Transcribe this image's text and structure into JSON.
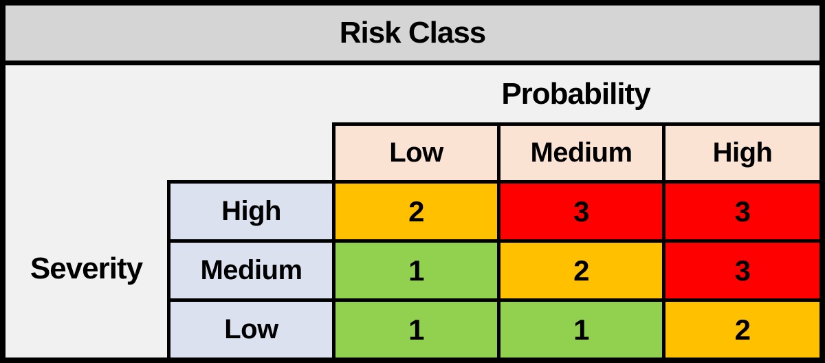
{
  "title": "Risk Class",
  "axes": {
    "column": "Probability",
    "row": "Severity"
  },
  "columns": [
    "Low",
    "Medium",
    "High"
  ],
  "rows": [
    "High",
    "Medium",
    "Low"
  ],
  "cells": [
    [
      "2",
      "3",
      "3"
    ],
    [
      "1",
      "2",
      "3"
    ],
    [
      "1",
      "1",
      "2"
    ]
  ],
  "levels": [
    [
      2,
      3,
      3
    ],
    [
      1,
      2,
      3
    ],
    [
      1,
      1,
      2
    ]
  ],
  "colors": {
    "level_1": "#92d050",
    "level_2": "#ffc000",
    "level_3": "#ff0000",
    "column_header_bg": "#fae3d3",
    "row_header_bg": "#dce1f0",
    "title_bg": "#d5d5d5",
    "body_bg": "#f1f1f1",
    "border": "#000000"
  },
  "chart_data": {
    "type": "heatmap",
    "title": "Risk Class",
    "xlabel": "Probability",
    "ylabel": "Severity",
    "x_categories": [
      "Low",
      "Medium",
      "High"
    ],
    "y_categories": [
      "High",
      "Medium",
      "Low"
    ],
    "values": [
      [
        2,
        3,
        3
      ],
      [
        1,
        2,
        3
      ],
      [
        1,
        1,
        2
      ]
    ],
    "value_colors": {
      "1": "#92d050",
      "2": "#ffc000",
      "3": "#ff0000"
    },
    "legend": "off",
    "grid": "off"
  }
}
